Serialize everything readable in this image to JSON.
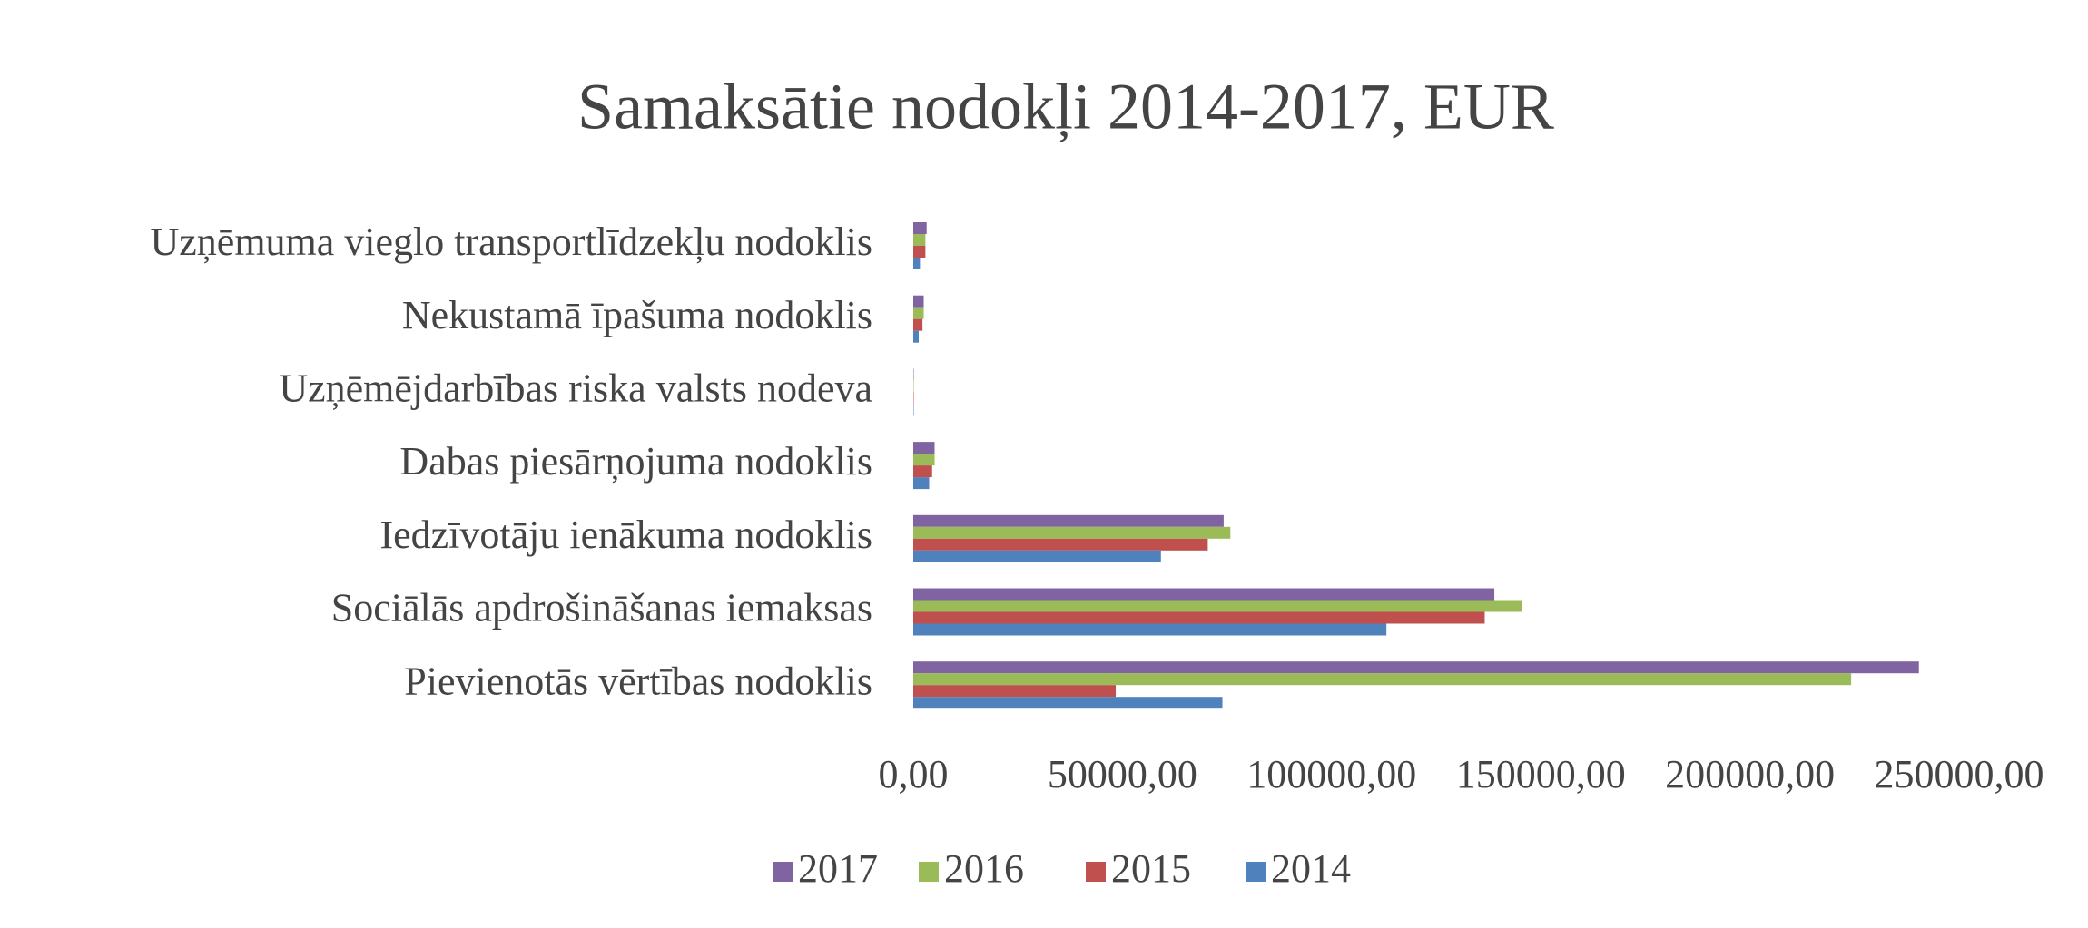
{
  "chart_data": {
    "type": "hbar",
    "title": "Samaksātie nodokļi 2014-2017, EUR",
    "categories": [
      "Uzņēmuma vieglo transportlīdzekļu nodoklis",
      "Nekustamā īpašuma nodoklis",
      "Uzņēmējdarbības riska valsts nodeva",
      "Dabas piesārņojuma nodoklis",
      "Iedzīvotāju ienākuma nodoklis",
      "Sociālās apdrošināšanas iemaksas",
      "Pievienotās vērtības nodoklis"
    ],
    "series": [
      {
        "name": "2017",
        "color": "#8064a2",
        "values": [
          3200,
          2500,
          100,
          5100,
          74200,
          138900,
          240400
        ]
      },
      {
        "name": "2016",
        "color": "#9bbb59",
        "values": [
          2900,
          2500,
          100,
          5100,
          75800,
          145500,
          224200
        ]
      },
      {
        "name": "2015",
        "color": "#c0504d",
        "values": [
          2900,
          2200,
          100,
          4500,
          70400,
          136600,
          48400
        ]
      },
      {
        "name": "2014",
        "color": "#4f81bd",
        "values": [
          1600,
          1300,
          100,
          3800,
          59200,
          113100,
          73900
        ]
      }
    ],
    "xlim": [
      0,
      250000
    ],
    "xticks": [
      {
        "value": 0,
        "label": "0,00"
      },
      {
        "value": 50000,
        "label": "50000,00"
      },
      {
        "value": 100000,
        "label": "100000,00"
      },
      {
        "value": 150000,
        "label": "150000,00"
      },
      {
        "value": 200000,
        "label": "200000,00"
      },
      {
        "value": 250000,
        "label": "250000,00"
      }
    ],
    "grid": false,
    "legend": "bottom"
  }
}
